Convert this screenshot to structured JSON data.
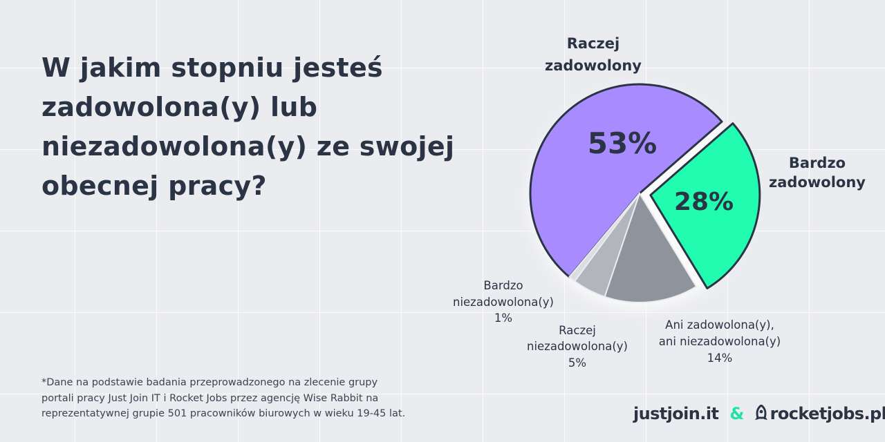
{
  "question": "W jakim stopniu jesteś zadowolona(y) lub niezadowolona(y) ze swojej obecnej pracy?",
  "footnote_lines": [
    "*Dane na podstawie badania przeprowadzonego na zlecenie grupy",
    "portali pracy Just Join IT i Rocket Jobs przez agencję Wise Rabbit na",
    "reprezentatywnej grupie 501 pracowników biurowych w wieku 19-45 lat."
  ],
  "logos": {
    "justjoin": "justjoin.it",
    "ampersand": "&",
    "rocketjobs": "rocketjobs.pl"
  },
  "chart_data": {
    "type": "pie",
    "categories": [
      "Raczej zadowolony",
      "Bardzo zadowolony",
      "Ani zadowolona(y), ani niezadowolona(y)",
      "Raczej niezadowolona(y)",
      "Bardzo niezadowolona(y)"
    ],
    "values": [
      53,
      28,
      14,
      5,
      1
    ],
    "value_labels": [
      "53%",
      "28%",
      "14%",
      "5%",
      "1%"
    ],
    "label_lines": [
      [
        "Raczej",
        "zadowolony"
      ],
      [
        "Bardzo",
        "zadowolony"
      ],
      [
        "Ani zadowolona(y),",
        "ani niezadowolona(y)"
      ],
      [
        "Raczej",
        "niezadowolona(y)"
      ],
      [
        "Bardzo",
        "niezadowolona(y)"
      ]
    ],
    "colors": [
      "#a88bff",
      "#21fcb0",
      "#8f949c",
      "#b2b5bc",
      "#dcdde2"
    ],
    "outline_color": "#2b3444"
  }
}
